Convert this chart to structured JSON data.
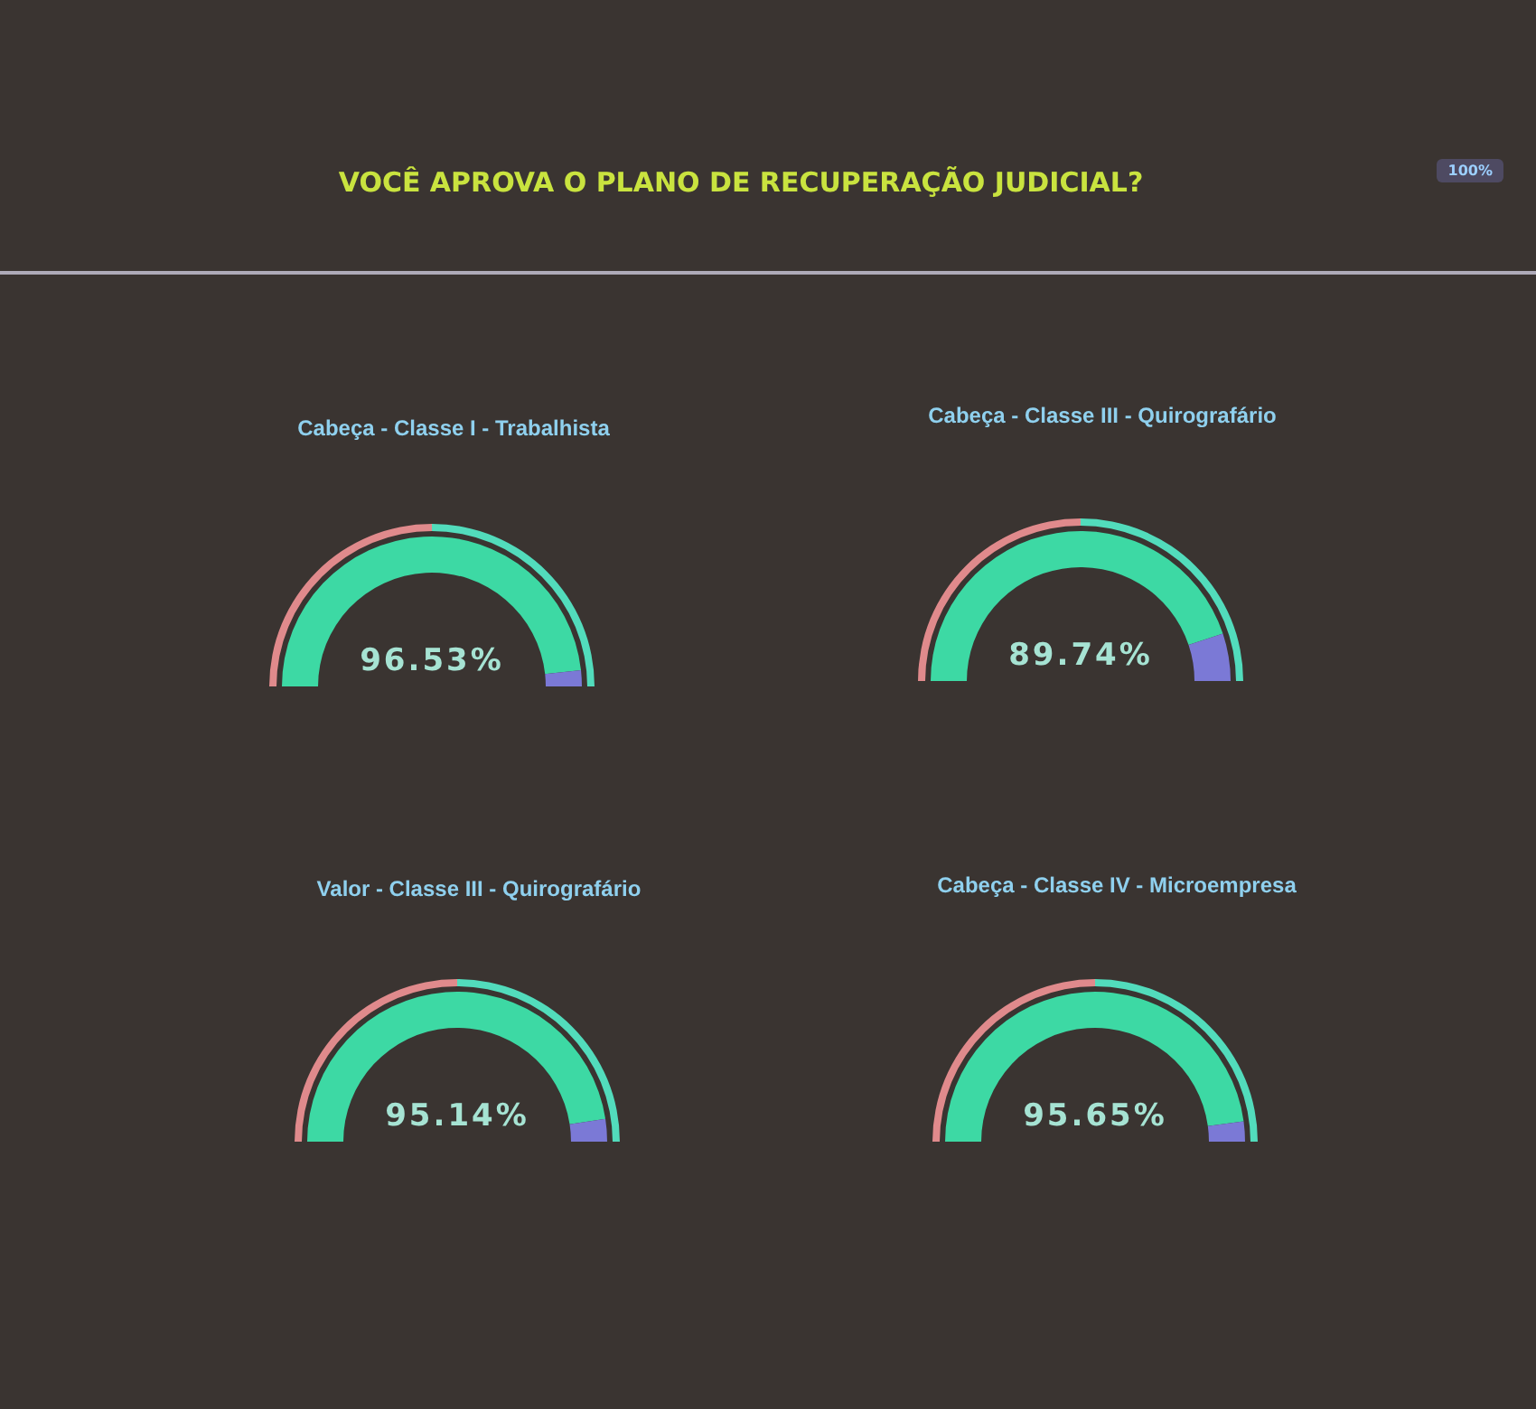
{
  "chart_data": [
    {
      "type": "other",
      "title": "VOCÊ APROVA O PLANO DE RECUPERAÇÃO JUDICIAL?",
      "annotations": [
        "100%"
      ]
    },
    {
      "type": "donut",
      "title": "Cabeça - Classe I - Trabalhista",
      "categories": [
        null,
        null
      ],
      "values": [
        96.53,
        3.47
      ],
      "colors": [
        "#3dd9a4",
        "#7b79d6"
      ],
      "value_labels": [
        "96.53%",
        null
      ]
    },
    {
      "type": "donut",
      "title": "Cabeça - Classe III - Quirografário",
      "categories": [
        null,
        null
      ],
      "values": [
        89.74,
        10.26
      ],
      "colors": [
        "#3dd9a4",
        "#7b79d6"
      ],
      "value_labels": [
        "89.74%",
        null
      ]
    },
    {
      "type": "donut",
      "title": "Valor - Classe III - Quirografário",
      "categories": [
        null,
        null
      ],
      "values": [
        95.14,
        4.86
      ],
      "colors": [
        "#3dd9a4",
        "#7b79d6"
      ],
      "value_labels": [
        "95.14%",
        null
      ]
    },
    {
      "type": "donut",
      "title": "Cabeça - Classe IV - Microempresa",
      "categories": [
        null,
        null
      ],
      "values": [
        95.65,
        4.35
      ],
      "colors": [
        "#3dd9a4",
        "#7b79d6"
      ],
      "value_labels": [
        "95.65%",
        null
      ]
    }
  ]
}
